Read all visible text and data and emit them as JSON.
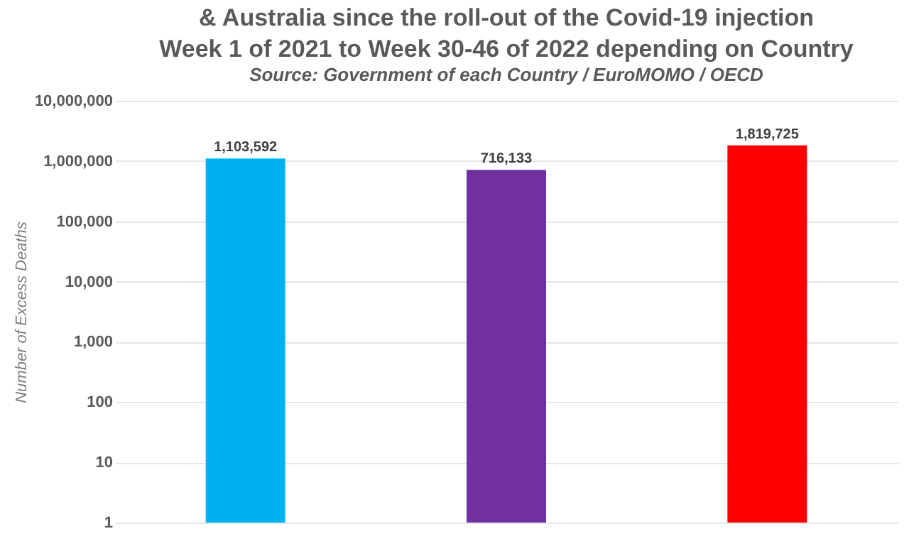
{
  "chart_data": {
    "type": "bar",
    "title": [
      "& Australia since the roll-out of the Covid-19 injection",
      "Week 1 of 2021 to Week 30-46 of 2022 depending on Country"
    ],
    "subtitle": "Source: Government of each Country / EuroMOMO / OECD",
    "ylabel": "Number of Excess Deaths",
    "categories": [
      null,
      null,
      null
    ],
    "values": [
      1103592,
      716133,
      1819725
    ],
    "value_labels": [
      "1,103,592",
      "716,133",
      "1,819,725"
    ],
    "colors": [
      "#00b0f0",
      "#7030a0",
      "#ff0000"
    ],
    "log": "y",
    "ylim": [
      1,
      10000000
    ],
    "yticks": [
      1,
      10,
      100,
      {
        "value": 1000,
        "label": "1,000"
      },
      {
        "value": 10000,
        "label": "10,000"
      },
      {
        "value": 100000,
        "label": "100,000"
      },
      {
        "value": 1000000,
        "label": "1,000,000"
      },
      {
        "value": 10000000,
        "label": "10,000,000"
      }
    ],
    "grid": "y",
    "tick_labels": "y"
  }
}
